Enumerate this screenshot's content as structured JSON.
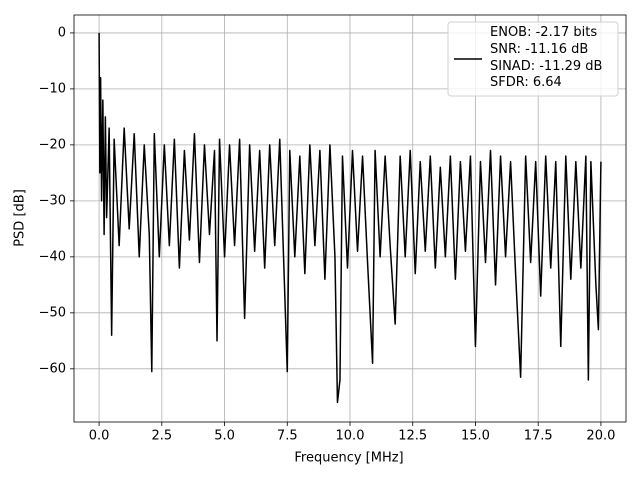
{
  "chart_data": {
    "type": "line",
    "xlabel": "Frequency [MHz]",
    "ylabel": "PSD [dB]",
    "xlim": [
      -1.0,
      21.0
    ],
    "ylim": [
      -69.5,
      3.2
    ],
    "xticks": [
      {
        "value": 0,
        "label": "0.0"
      },
      {
        "value": 2.5,
        "label": "2.5"
      },
      {
        "value": 5,
        "label": "5.0"
      },
      {
        "value": 7.5,
        "label": "7.5"
      },
      {
        "value": 10,
        "label": "10.0"
      },
      {
        "value": 12.5,
        "label": "12.5"
      },
      {
        "value": 15,
        "label": "15.0"
      },
      {
        "value": 17.5,
        "label": "17.5"
      },
      {
        "value": 20,
        "label": "20.0"
      }
    ],
    "yticks": [
      0,
      {
        "value": -10,
        "label": "−10"
      },
      {
        "value": -20,
        "label": "−20"
      },
      {
        "value": -30,
        "label": "−30"
      },
      {
        "value": -40,
        "label": "−40"
      },
      {
        "value": -50,
        "label": "−50"
      },
      {
        "value": -60,
        "label": "−60"
      }
    ],
    "grid": true,
    "legend": "upper right",
    "x": [
      0,
      0.03,
      0.06,
      0.1,
      0.15,
      0.2,
      0.25,
      0.3,
      0.4,
      0.5,
      0.6,
      0.8,
      1.0,
      1.2,
      1.4,
      1.6,
      1.8,
      2.0,
      2.1,
      2.2,
      2.4,
      2.6,
      2.8,
      3.0,
      3.2,
      3.4,
      3.6,
      3.8,
      4.0,
      4.2,
      4.4,
      4.6,
      4.7,
      4.8,
      5.0,
      5.2,
      5.4,
      5.6,
      5.8,
      6.0,
      6.2,
      6.4,
      6.6,
      6.8,
      7.0,
      7.2,
      7.5,
      7.6,
      7.8,
      8.0,
      8.2,
      8.4,
      8.6,
      8.8,
      9.0,
      9.2,
      9.4,
      9.5,
      9.6,
      9.7,
      9.9,
      10.1,
      10.3,
      10.5,
      10.7,
      10.9,
      11.0,
      11.2,
      11.4,
      11.6,
      11.8,
      12.0,
      12.2,
      12.4,
      12.6,
      12.8,
      13.0,
      13.2,
      13.4,
      13.6,
      13.8,
      14.0,
      14.2,
      14.4,
      14.6,
      14.8,
      15.0,
      15.2,
      15.4,
      15.6,
      15.8,
      16.0,
      16.2,
      16.4,
      16.6,
      16.8,
      17.0,
      17.2,
      17.4,
      17.6,
      17.8,
      18.0,
      18.2,
      18.4,
      18.6,
      18.8,
      19.0,
      19.2,
      19.4,
      19.5,
      19.6,
      19.8,
      19.9,
      20.0
    ],
    "series": [
      {
        "name": "ENOB: -2.17 bits\nSNR: -11.16 dB\nSINAD: -11.29 dB\nSFDR: 6.64",
        "color": "#000000",
        "values": [
          0,
          -25,
          -8,
          -30,
          -12,
          -36,
          -15,
          -33,
          -17,
          -54,
          -19,
          -38,
          -17,
          -35,
          -18,
          -40,
          -20,
          -36,
          -60.5,
          -18,
          -40,
          -20,
          -38,
          -19,
          -42,
          -21,
          -37,
          -18,
          -41,
          -20,
          -36,
          -21,
          -55,
          -19,
          -40,
          -20,
          -38,
          -19,
          -51,
          -20,
          -39,
          -21,
          -42,
          -20,
          -38,
          -19,
          -60.5,
          -21,
          -40,
          -22,
          -43,
          -20,
          -38,
          -21,
          -44,
          -20,
          -40,
          -66,
          -62,
          -22,
          -42,
          -21,
          -39,
          -22,
          -41,
          -59,
          -21,
          -40,
          -22,
          -38,
          -52,
          -22,
          -40,
          -21,
          -43,
          -23,
          -39,
          -22,
          -42,
          -24,
          -40,
          -22,
          -44,
          -23,
          -39,
          -22,
          -56,
          -23,
          -41,
          -21,
          -45,
          -22,
          -40,
          -23,
          -43,
          -61.5,
          -22,
          -41,
          -23,
          -47,
          -22,
          -42,
          -23,
          -56,
          -22,
          -44,
          -23,
          -42,
          -22,
          -62,
          -23,
          -45,
          -53,
          -23
        ]
      }
    ]
  }
}
